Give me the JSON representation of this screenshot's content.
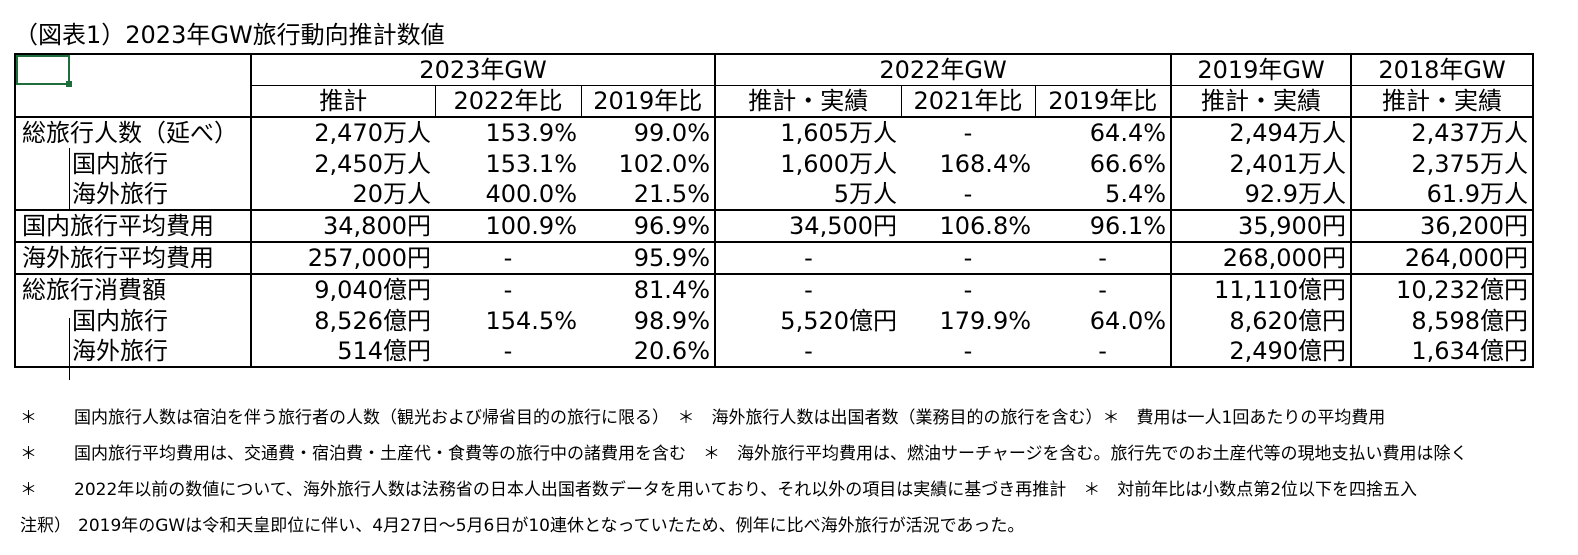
{
  "title": "（図表1）2023年GW旅行動向推計数値",
  "header": {
    "groups": [
      "2023年GW",
      "2022年GW",
      "2019年GW",
      "2018年GW"
    ],
    "sub": [
      "推計",
      "2022年比",
      "2019年比",
      "推計・実績",
      "2021年比",
      "2019年比",
      "推計・実績",
      "推計・実績"
    ]
  },
  "rows": [
    {
      "label": "総旅行人数（延べ）",
      "values": [
        "2,470万人",
        "153.9%",
        "99.0%",
        "1,605万人",
        "-",
        "64.4%",
        "2,494万人",
        "2,437万人"
      ]
    },
    {
      "label": "国内旅行",
      "values": [
        "2,450万人",
        "153.1%",
        "102.0%",
        "1,600万人",
        "168.4%",
        "66.6%",
        "2,401万人",
        "2,375万人"
      ]
    },
    {
      "label": "海外旅行",
      "values": [
        "20万人",
        "400.0%",
        "21.5%",
        "5万人",
        "-",
        "5.4%",
        "92.9万人",
        "61.9万人"
      ]
    },
    {
      "label": "国内旅行平均費用",
      "values": [
        "34,800円",
        "100.9%",
        "96.9%",
        "34,500円",
        "106.8%",
        "96.1%",
        "35,900円",
        "36,200円"
      ]
    },
    {
      "label": "海外旅行平均費用",
      "values": [
        "257,000円",
        "-",
        "95.9%",
        "-",
        "-",
        "-",
        "268,000円",
        "264,000円"
      ]
    },
    {
      "label": "総旅行消費額",
      "values": [
        "9,040億円",
        "-",
        "81.4%",
        "-",
        "-",
        "-",
        "11,110億円",
        "10,232億円"
      ]
    },
    {
      "label": "国内旅行",
      "values": [
        "8,526億円",
        "154.5%",
        "98.9%",
        "5,520億円",
        "179.9%",
        "64.0%",
        "8,620億円",
        "8,598億円"
      ]
    },
    {
      "label": "海外旅行",
      "values": [
        "514億円",
        "-",
        "20.6%",
        "-",
        "-",
        "-",
        "2,490億円",
        "1,634億円"
      ]
    }
  ],
  "notes": [
    {
      "mark": "＊",
      "text": "国内旅行人数は宿泊を伴う旅行者の人数（観光および帰省目的の旅行に限る）　＊　海外旅行人数は出国者数（業務目的の旅行を含む）＊　費用は一人1回あたりの平均費用"
    },
    {
      "mark": "＊",
      "text": "国内旅行平均費用は、交通費・宿泊費・土産代・食費等の旅行中の諸費用を含む　＊　海外旅行平均費用は、燃油サーチャージを含む。旅行先でのお土産代等の現地支払い費用は除く"
    },
    {
      "mark": "＊",
      "text": "2022年以前の数値について、海外旅行人数は法務省の日本人出国者数データを用いており、それ以外の項目は実績に基づき再推計　＊　対前年比は小数点第2位以下を四捨五入"
    },
    {
      "mark": "注釈）",
      "text": "2019年のGWは令和天皇即位に伴い、4月27日～5月6日が10連休となっていたため、例年に比べ海外旅行が活況であった。"
    }
  ]
}
